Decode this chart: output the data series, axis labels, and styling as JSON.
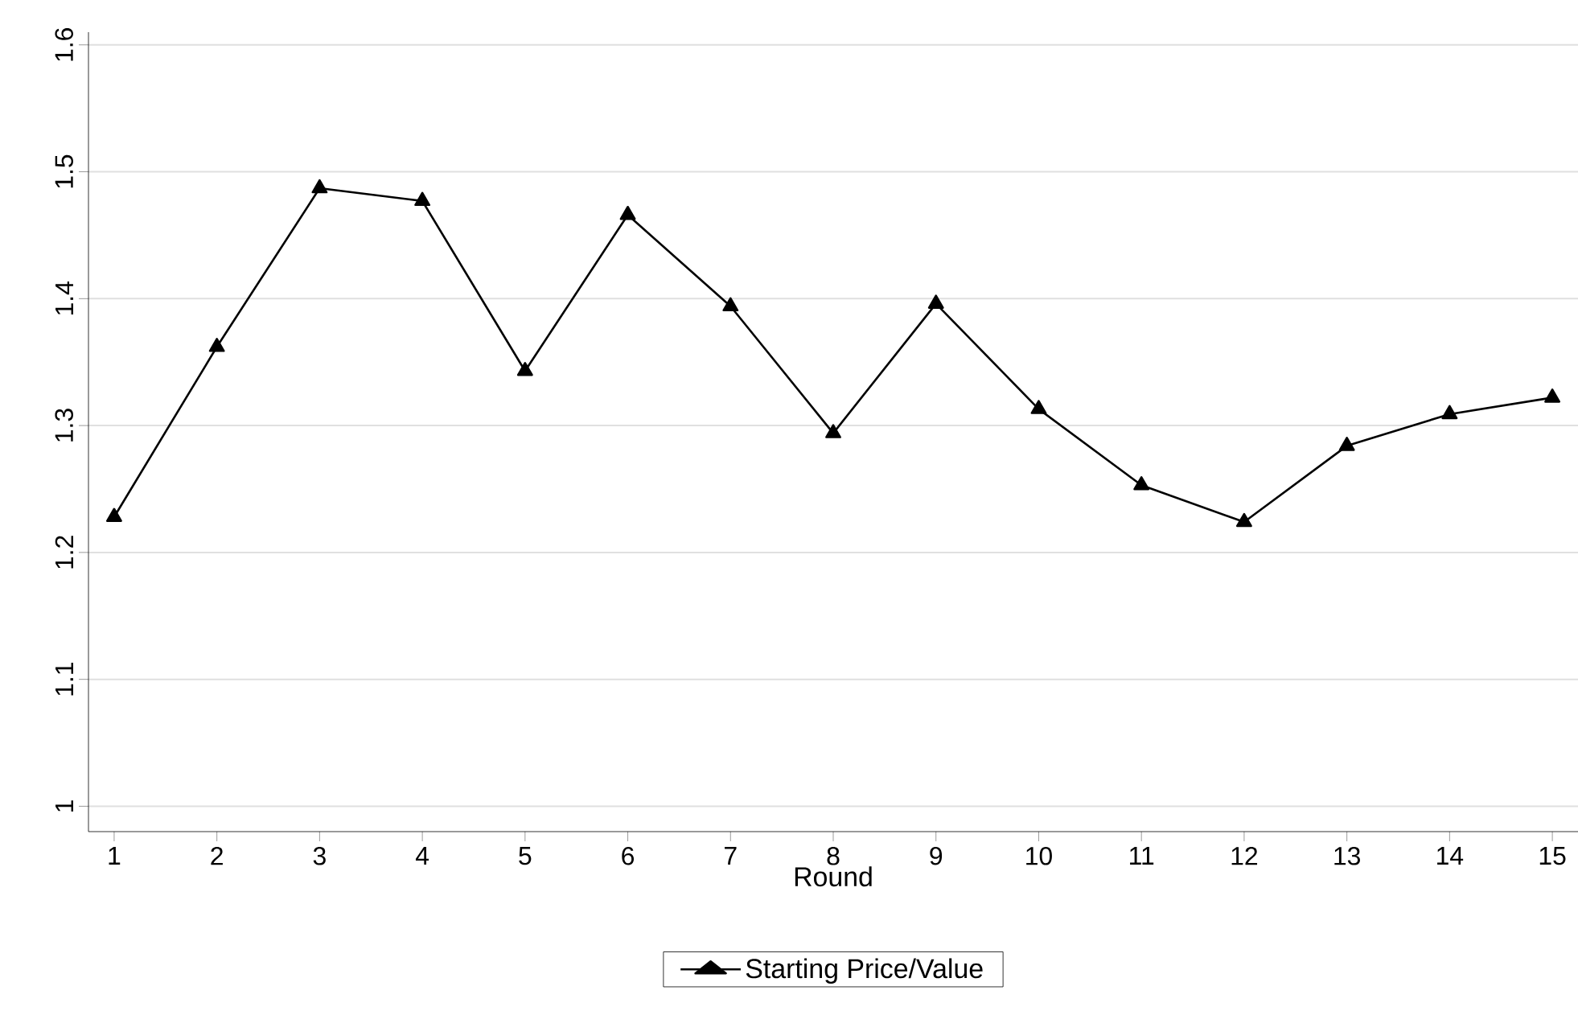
{
  "chart_data": {
    "type": "line",
    "xlabel": "Round",
    "x": [
      1,
      2,
      3,
      4,
      5,
      6,
      7,
      8,
      9,
      10,
      11,
      12,
      13,
      14,
      15
    ],
    "series": [
      {
        "name": "Starting Price/Value",
        "color": "#000000",
        "values": [
          1.228,
          1.362,
          1.487,
          1.477,
          1.343,
          1.466,
          1.394,
          1.294,
          1.396,
          1.313,
          1.253,
          1.224,
          1.284,
          1.309,
          1.322
        ]
      }
    ],
    "xlim": [
      0.75,
      15.25
    ],
    "ylim": [
      0.98,
      1.61
    ],
    "xticks": [
      1,
      2,
      3,
      4,
      5,
      6,
      7,
      8,
      9,
      10,
      11,
      12,
      13,
      14,
      15
    ],
    "yticks": [
      1,
      1.1,
      1.2,
      1.3,
      1.4,
      1.5,
      1.6
    ],
    "grid": "y",
    "legend": "bottom",
    "marker": "triangle",
    "line_style": "solid"
  }
}
